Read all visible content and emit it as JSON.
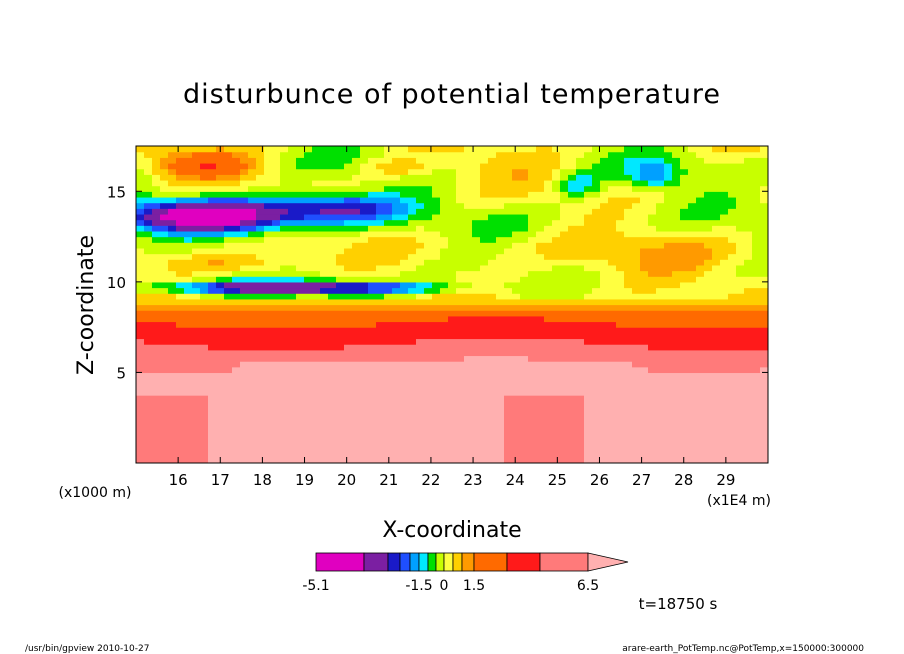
{
  "chart_data": {
    "type": "heatmap",
    "title": "disturbunce of potential temperature",
    "xlabel": "X-coordinate",
    "ylabel": "Z-coordinate",
    "x_unit_label": "(x1E4 m)",
    "y_unit_label": "(x1000 m)",
    "xlim": [
      15.0,
      30.0
    ],
    "ylim": [
      0.0,
      17.5
    ],
    "x_ticks": [
      16,
      17,
      18,
      19,
      20,
      21,
      22,
      23,
      24,
      25,
      26,
      27,
      28,
      29
    ],
    "y_ticks": [
      5,
      10,
      15
    ],
    "colorbar": {
      "levels": [
        -5.1,
        -4.0,
        -3.0,
        -2.5,
        -2.0,
        -1.5,
        -1.0,
        -0.5,
        0,
        0.5,
        1.0,
        1.5,
        2.5,
        3.5,
        4.5,
        6.5
      ],
      "colors": [
        "#e000c0",
        "#7b1fa2",
        "#1a1ac8",
        "#1f4fff",
        "#00a0ff",
        "#00e8ff",
        "#00e000",
        "#c8ff00",
        "#ffff40",
        "#ffd000",
        "#ff9a00",
        "#ff6a00",
        "#ff1a1a",
        "#ff7a7a",
        "#ffb0b0"
      ],
      "tick_labels": [
        "-5.1",
        "-1.5",
        "0",
        "1.5",
        "6.5"
      ]
    },
    "time_label": "t=18750 s",
    "footer_left": "/usr/bin/gpview  2010-10-27",
    "footer_right": "arare-earth_PotTemp.nc@PotTemp,x=150000:300000"
  }
}
